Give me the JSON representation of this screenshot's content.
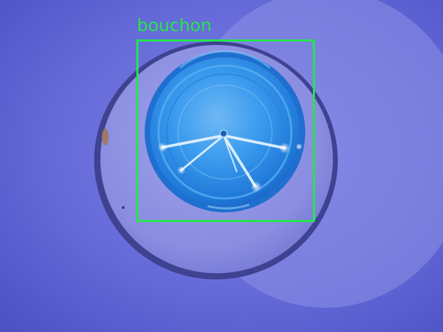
{
  "detection": {
    "label": "bouchon",
    "box_color": "#22e84a"
  },
  "scene": {
    "background_color": "#5a5fd0",
    "cap_color": "#2d8ee6",
    "rim_color": "#3a3f8e"
  }
}
